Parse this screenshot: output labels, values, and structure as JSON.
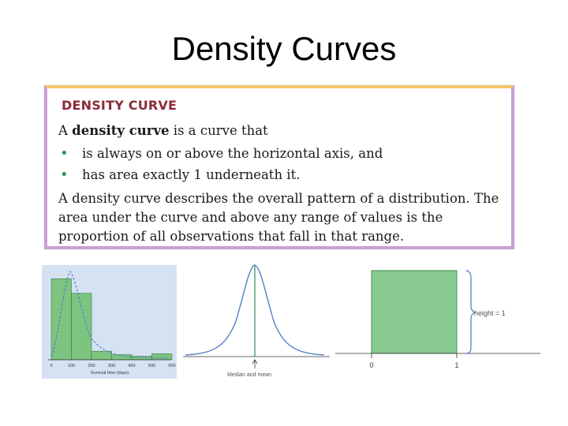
{
  "slide": {
    "title": "Density Curves"
  },
  "definition": {
    "heading": "DENSITY CURVE",
    "intro_prefix": "A ",
    "intro_term": "density curve",
    "intro_suffix": " is a curve that",
    "bullets": [
      "is always on or above the horizontal axis, and",
      "has area exactly 1 underneath it."
    ],
    "paragraph": "A density curve describes the overall pattern of a distribution. The area under the curve and above any range of values is the proportion of all observations that fall in that range."
  },
  "histogram_figure": {
    "xlabel": "Survival time (days)",
    "tick_labels": [
      "0",
      "100",
      "200",
      "300",
      "400",
      "500",
      "600"
    ],
    "bar_heights": [
      0.95,
      0.78,
      0.1,
      0.06,
      0.04,
      0.07
    ],
    "colors": {
      "bar": "#7cc47f",
      "curve": "#4a78c8",
      "background": "#d4e2f2"
    }
  },
  "normal_figure": {
    "label": "Median and mean",
    "colors": {
      "curve": "#4a78c8",
      "marker": "#2a8a5a"
    }
  },
  "uniform_figure": {
    "height_label": "height = 1",
    "tick_labels": [
      "0",
      "1"
    ],
    "colors": {
      "fill": "#88c98f",
      "brace": "#4a78c8"
    }
  }
}
